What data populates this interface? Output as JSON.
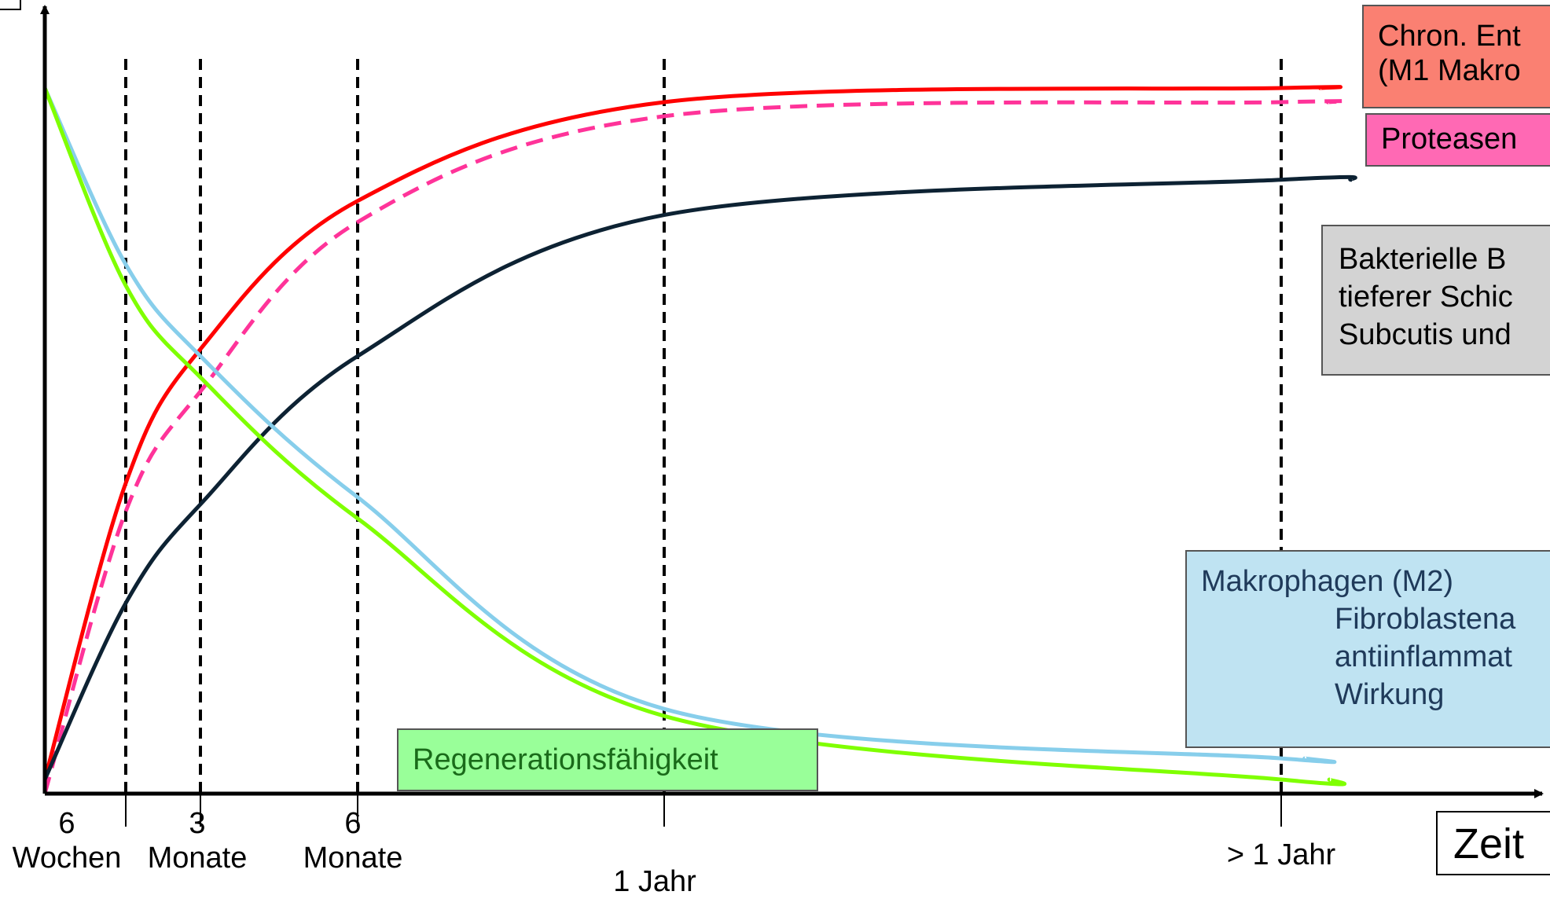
{
  "chart_data": {
    "type": "line",
    "xlabel": "Zeit",
    "x_ticks": [
      {
        "lines": [
          "6",
          "Wochen"
        ]
      },
      {
        "lines": [
          "3",
          "Monate"
        ]
      },
      {
        "lines": [
          "6",
          "Monate"
        ]
      },
      {
        "lines": [
          "1 Jahr"
        ]
      },
      {
        "lines": [
          "> 1 Jahr"
        ]
      }
    ],
    "series": [
      {
        "key": "chron_entzuendung",
        "color": "#ff0000",
        "dash": false,
        "values": [
          0.02,
          0.44,
          0.63,
          0.84,
          0.98,
          1.0,
          1.0
        ]
      },
      {
        "key": "proteasen",
        "color": "#ff3399",
        "dash": true,
        "values": [
          0.0,
          0.4,
          0.57,
          0.81,
          0.96,
          0.98,
          0.98
        ]
      },
      {
        "key": "bakterielle_besiedlung",
        "color": "#0d2233",
        "dash": false,
        "values": [
          0.02,
          0.27,
          0.41,
          0.62,
          0.82,
          0.87,
          0.87
        ]
      },
      {
        "key": "makrophagen_m2",
        "color": "#87ceeb",
        "dash": false,
        "values": [
          1.0,
          0.75,
          0.62,
          0.42,
          0.12,
          0.05,
          0.05
        ]
      },
      {
        "key": "regenerationsfaehigkeit",
        "color": "#7fff00",
        "dash": false,
        "values": [
          1.0,
          0.72,
          0.59,
          0.39,
          0.11,
          0.02,
          0.02
        ]
      }
    ]
  },
  "boxes": {
    "chron_entzuendung": {
      "lines": [
        "Chron. Ent",
        "(M1 Makro"
      ],
      "bg": "#fa8072",
      "color": "#000000"
    },
    "proteasen": {
      "lines": [
        "Proteasen"
      ],
      "bg": "#ff69b4",
      "color": "#000000"
    },
    "bakterielle_besiedlung": {
      "lines": [
        "Bakterielle B",
        "tieferer Schic",
        "Subcutis und"
      ],
      "bg": "#d3d3d3",
      "color": "#000000"
    },
    "makrophagen_m2": {
      "title": "Makrophagen (M2)",
      "lines": [
        "Fibroblastena",
        "antiinflammat",
        "Wirkung"
      ],
      "bg": "#bfe3f2",
      "color": "#1f3a5a"
    },
    "regenerationsfaehigkeit": {
      "lines": [
        "Regenerationsfähigkeit"
      ],
      "bg": "#99ff99",
      "color": "#1a6b1a"
    }
  }
}
